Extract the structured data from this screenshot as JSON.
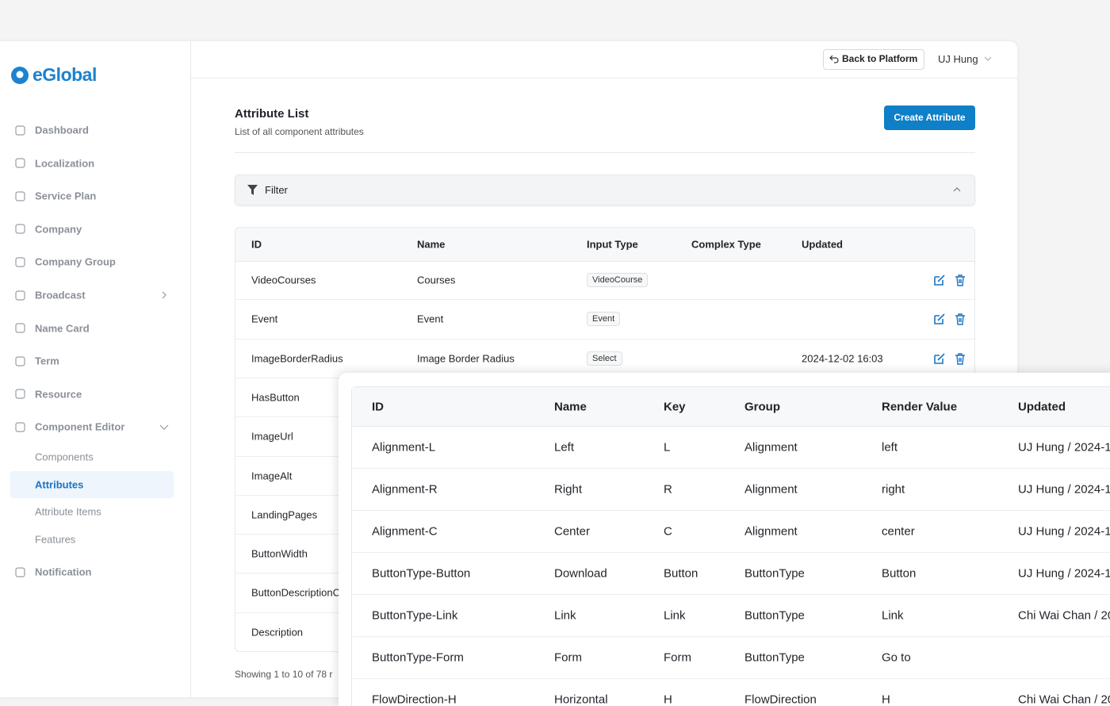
{
  "sidebar": {
    "brand": "eGlobal",
    "menu": [
      "Dashboard",
      "Localization",
      "Service Plan",
      "Company",
      "Company Group",
      "Broadcast",
      "Name Card",
      "Term",
      "Resource",
      "Component Editor"
    ],
    "submenu": [
      "Components",
      "Attributes",
      "Attribute Items",
      "Features"
    ],
    "footer_menu": [
      "Notification"
    ]
  },
  "header": {
    "back_button": "Back to Platform",
    "user": "UJ Hung"
  },
  "page": {
    "title": "Attribute List",
    "subtitle": "List of all component attributes",
    "create_button": "Create Attribute",
    "filter": "Filter"
  },
  "table": {
    "columns": [
      "ID",
      "Name",
      "Input Type",
      "Complex Type",
      "Updated"
    ],
    "rows": [
      [
        "VideoCourses",
        "Courses",
        "VideoCourse",
        null,
        null
      ],
      [
        "Event",
        "Event",
        "Event",
        null,
        null
      ],
      [
        "ImageBorderRadius",
        "Image Border Radius",
        "Select",
        null,
        "2024-12-02 16:03"
      ],
      [
        "HasButton",
        null,
        null,
        null,
        null
      ],
      [
        "ImageUrl",
        null,
        null,
        null,
        null
      ],
      [
        "ImageAlt",
        null,
        null,
        null,
        null
      ],
      [
        "LandingPages",
        null,
        null,
        null,
        null
      ],
      [
        "ButtonWidth",
        null,
        null,
        null,
        null
      ],
      [
        "ButtonDescriptionC",
        null,
        null,
        null,
        null
      ],
      [
        "Description",
        null,
        null,
        null,
        null
      ]
    ]
  },
  "pagination": "Showing 1 to 10 of 78 r",
  "overlay_table": {
    "columns": [
      "ID",
      "Name",
      "Key",
      "Group",
      "Render Value",
      "Updated"
    ],
    "rows": [
      [
        "Alignment-L",
        "Left",
        "L",
        "Alignment",
        "left",
        "UJ Hung / 2024-1"
      ],
      [
        "Alignment-R",
        "Right",
        "R",
        "Alignment",
        "right",
        "UJ Hung / 2024-1"
      ],
      [
        "Alignment-C",
        "Center",
        "C",
        "Alignment",
        "center",
        "UJ Hung / 2024-1"
      ],
      [
        "ButtonType-Button",
        "Download",
        "Button",
        "ButtonType",
        "Button",
        "UJ Hung / 2024-1"
      ],
      [
        "ButtonType-Link",
        "Link",
        "Link",
        "ButtonType",
        "Link",
        "Chi Wai Chan / 20"
      ],
      [
        "ButtonType-Form",
        "Form",
        "Form",
        "ButtonType",
        "Go to",
        null
      ],
      [
        "FlowDirection-H",
        "Horizontal",
        "H",
        "FlowDirection",
        "H",
        "Chi Wai Chan / 20"
      ]
    ]
  }
}
